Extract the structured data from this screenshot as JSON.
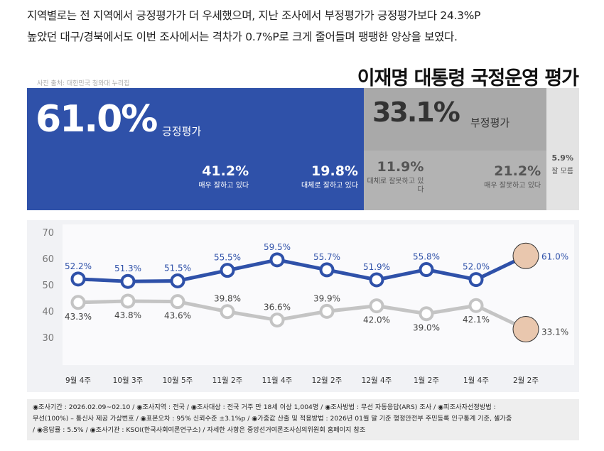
{
  "intro": [
    "지역별로는 전 지역에서 긍정평가가 더 우세했으며, 지난 조사에서 부정평가가 긍정평가보다 24.3%P",
    "높았던 대구/경북에서도 이번 조사에서는 격차가 0.7%P로 크게 줄어들며 팽팽한 양상을 보였다."
  ],
  "photo_source": "사진 출처: 대한민국 청와대 누리집",
  "chart_data": {
    "type": "line",
    "title": "이재명 대통령 국정운영 평가",
    "totals": {
      "categories": [
        "긍정평가",
        "부정평가"
      ],
      "values": [
        61.0,
        33.1
      ],
      "value_labels": [
        "61.0%",
        "33.1%"
      ],
      "colors": [
        "#2f51a9",
        "#a9a9a9"
      ]
    },
    "breakdown": {
      "categories": [
        "매우 잘하고 있다",
        "대체로 잘하고 있다",
        "대체로 잘못하고 있다",
        "매우 잘못하고 있다",
        "잘 모름"
      ],
      "values": [
        41.2,
        19.8,
        11.9,
        21.2,
        5.9
      ],
      "value_labels": [
        "41.2%",
        "19.8%",
        "11.9%",
        "21.2%",
        "5.9%"
      ],
      "colors": [
        "#2f51a9",
        "#2f51a9",
        "#b3b3b3",
        "#b3b3b3",
        "#e3e3e3"
      ]
    },
    "categories": [
      "9월 4주",
      "10월 3주",
      "10월 5주",
      "11월 2주",
      "11월 4주",
      "12월 2주",
      "12월 4주",
      "1월 2주",
      "1월 4주",
      "2월 2주"
    ],
    "series": [
      {
        "name": "긍정평가",
        "color": "#2f51a9",
        "values": [
          52.2,
          51.3,
          51.5,
          55.5,
          59.5,
          55.7,
          51.9,
          55.8,
          52.0,
          61.0
        ],
        "value_labels": [
          "52.2%",
          "51.3%",
          "51.5%",
          "55.5%",
          "59.5%",
          "55.7%",
          "51.9%",
          "55.8%",
          "52.0%",
          "61.0%"
        ]
      },
      {
        "name": "부정평가",
        "color": "#c4c4c4",
        "values": [
          43.3,
          43.8,
          43.6,
          39.8,
          36.6,
          39.9,
          42.0,
          39.0,
          42.1,
          33.1
        ],
        "value_labels": [
          "43.3%",
          "43.8%",
          "43.6%",
          "39.8%",
          "36.6%",
          "39.9%",
          "42.0%",
          "39.0%",
          "42.1%",
          "33.1%"
        ]
      }
    ],
    "ylim": [
      30,
      70
    ],
    "yticks": [
      30,
      40,
      50,
      60,
      70
    ]
  },
  "footer": [
    "◉조사기간 : 2026.02.09~02.10 / ◉조사지역 : 전국 / ◉조사대상 : 전국 거주 만 18세 이상 1,004명 / ◉조사방법 : 무선 자동응답(ARS) 조사 / ◉피조사자선정방법 :",
    "무선(100%) – 통신사 제공 가상번호 / ◉표본오차 : 95% 신뢰수준 ±3.1%p / ◉가중값 산출 및 적용방법 : 2026년 01월 말 기준 행정안전부 주민등록 인구통계 기준, 셀가중",
    "/ ◉응답률 : 5.5% / ◉조사기관 : KSOI(한국사회여론연구소) / 자세한 사항은 중앙선거여론조사심의위원회 홈페이지 참조"
  ]
}
